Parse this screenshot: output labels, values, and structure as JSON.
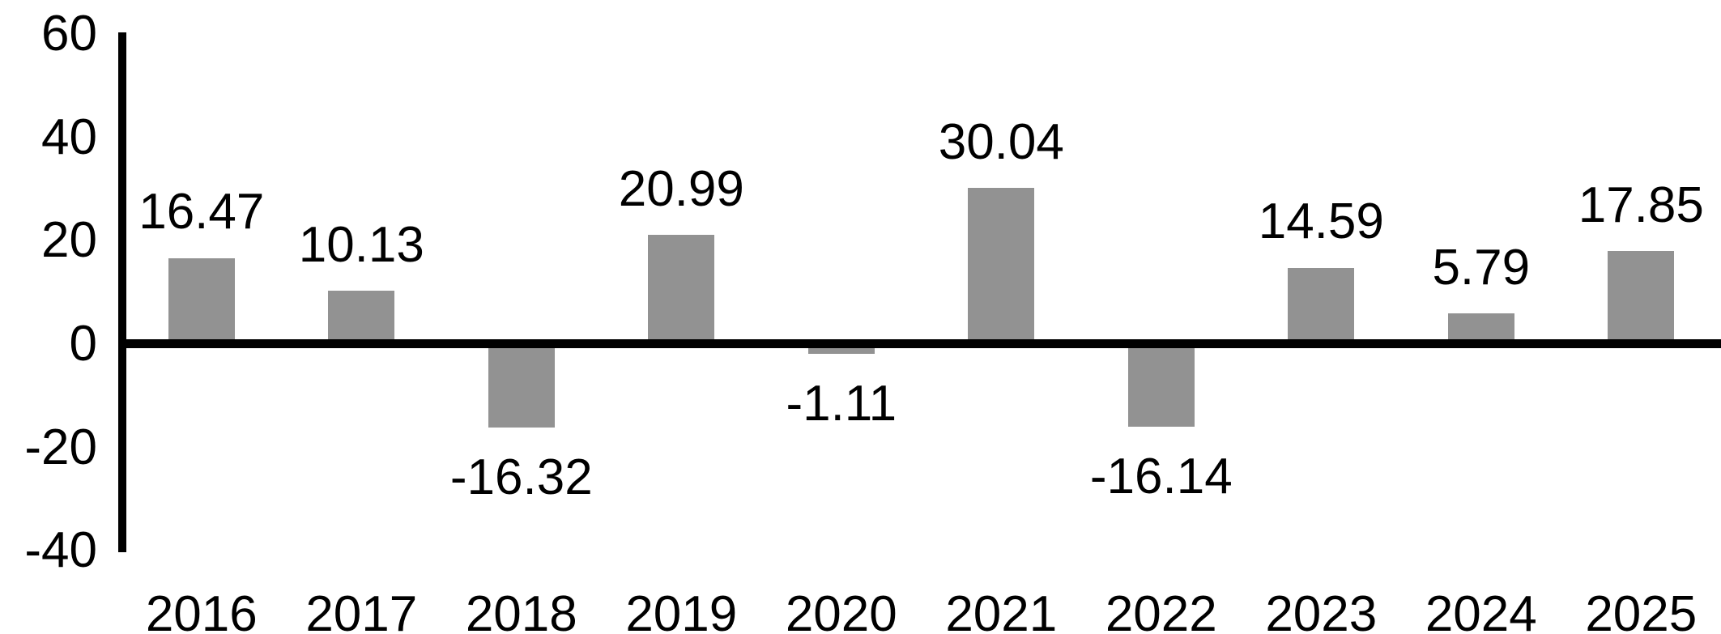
{
  "chart_data": {
    "type": "bar",
    "categories": [
      "2016",
      "2017",
      "2018",
      "2019",
      "2020",
      "2021",
      "2022",
      "2023",
      "2024",
      "2025"
    ],
    "values": [
      16.47,
      10.13,
      -16.32,
      20.99,
      -1.11,
      30.04,
      -16.14,
      14.59,
      5.79,
      17.85
    ],
    "value_labels": [
      "16.47",
      "10.13",
      "-16.32",
      "20.99",
      "-1.11",
      "30.04",
      "-16.14",
      "14.59",
      "5.79",
      "17.85"
    ],
    "yticks": [
      60,
      40,
      20,
      0,
      -20,
      -40
    ],
    "ytick_labels": [
      "60",
      "40",
      "20",
      "0",
      "-20",
      "-40"
    ],
    "ylim": [
      -40,
      60
    ],
    "title": "",
    "xlabel": "",
    "ylabel": "",
    "grid": false,
    "legend": false,
    "bar_color": "#929292",
    "axis_color": "#000000",
    "text_color": "#000000",
    "background_color": "#ffffff"
  }
}
